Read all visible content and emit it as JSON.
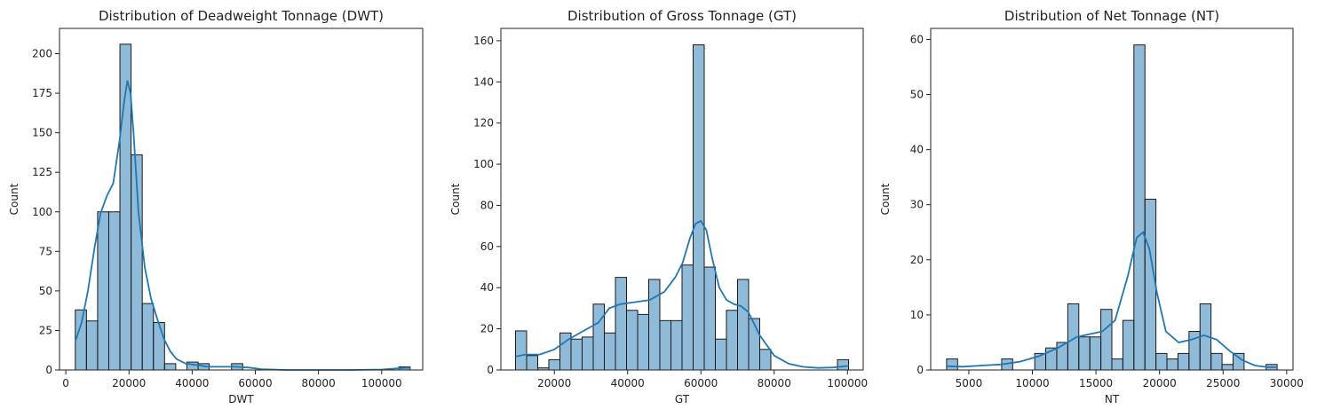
{
  "chart_data": [
    {
      "type": "histogram",
      "title": "Distribution of Deadweight Tonnage (DWT)",
      "xlabel": "DWT",
      "ylabel": "Count",
      "xlim": [
        -2000,
        113000
      ],
      "ylim": [
        0,
        216
      ],
      "xticks": [
        0,
        20000,
        40000,
        60000,
        80000,
        100000
      ],
      "yticks": [
        0,
        25,
        50,
        75,
        100,
        125,
        150,
        175,
        200
      ],
      "bin_range": [
        3000,
        109000
      ],
      "bins": 30,
      "counts": [
        38,
        31,
        100,
        100,
        206,
        136,
        42,
        30,
        4,
        0,
        5,
        4,
        0,
        0,
        4,
        0,
        0,
        0,
        0,
        0,
        0,
        0,
        0,
        0,
        0,
        0,
        0,
        0,
        0,
        2
      ],
      "kde": {
        "x": [
          3000,
          5000,
          7000,
          9000,
          11000,
          13000,
          15000,
          17000,
          18500,
          19500,
          20500,
          21500,
          23000,
          25000,
          27000,
          29000,
          31000,
          33000,
          35000,
          38000,
          42000,
          45000,
          50000,
          54000,
          58000,
          62000,
          70000,
          80000,
          90000,
          100000,
          105000,
          109000
        ],
        "y": [
          18,
          30,
          50,
          76,
          99,
          110,
          118,
          145,
          170,
          183,
          175,
          148,
          100,
          65,
          45,
          32,
          20,
          12,
          7,
          4,
          3,
          2,
          2,
          2,
          1.5,
          0.5,
          0,
          0,
          0,
          0.3,
          1,
          1.5
        ]
      },
      "grid": false
    },
    {
      "type": "histogram",
      "title": "Distribution of Gross Tonnage (GT)",
      "xlabel": "GT",
      "ylabel": "Count",
      "xlim": [
        5400,
        104300
      ],
      "ylim": [
        0,
        166
      ],
      "xticks": [
        20000,
        40000,
        60000,
        80000,
        100000
      ],
      "yticks": [
        0,
        20,
        40,
        60,
        80,
        100,
        120,
        140,
        160
      ],
      "bin_range": [
        9400,
        100300
      ],
      "bins": 30,
      "counts": [
        19,
        7,
        1,
        5,
        18,
        15,
        16,
        32,
        18,
        45,
        29,
        27,
        44,
        24,
        24,
        51,
        158,
        50,
        15,
        29,
        44,
        25,
        10,
        0,
        0,
        0,
        0,
        0,
        0,
        5
      ],
      "kde": {
        "x": [
          9400,
          12000,
          16000,
          20000,
          24000,
          28000,
          32000,
          35000,
          38000,
          42000,
          46000,
          50000,
          53000,
          55000,
          57000,
          58500,
          60000,
          61500,
          63000,
          65000,
          67000,
          69000,
          71000,
          73000,
          76000,
          80000,
          84000,
          88000,
          92000,
          96000,
          100300
        ],
        "y": [
          6.5,
          7.5,
          7.5,
          10,
          15,
          19,
          23,
          30,
          32,
          33,
          34,
          38,
          45,
          52,
          64,
          71,
          72.5,
          68,
          55,
          40,
          34,
          32,
          31,
          28,
          17,
          7,
          3,
          1.5,
          1,
          1.2,
          2
        ]
      },
      "grid": false
    },
    {
      "type": "histogram",
      "title": "Distribution of Net Tonnage (NT)",
      "xlabel": "NT",
      "ylabel": "Count",
      "xlim": [
        2000,
        30500
      ],
      "ylim": [
        0,
        62
      ],
      "xticks": [
        5000,
        10000,
        15000,
        20000,
        25000,
        30000
      ],
      "yticks": [
        0,
        10,
        20,
        30,
        40,
        50,
        60
      ],
      "bin_range": [
        3250,
        29250
      ],
      "bins": 30,
      "counts": [
        2,
        0,
        0,
        0,
        0,
        2,
        0,
        0,
        3,
        4,
        5,
        12,
        6,
        6,
        11,
        2,
        9,
        59,
        31,
        3,
        2,
        3,
        7,
        12,
        3,
        1,
        3,
        0,
        0,
        1
      ],
      "kde": {
        "x": [
          3250,
          4500,
          6000,
          7500,
          9000,
          10500,
          12000,
          13500,
          14500,
          15500,
          16500,
          17500,
          18200,
          18700,
          19200,
          19800,
          20500,
          21500,
          22500,
          23500,
          24500,
          25500,
          26500,
          27500,
          28500,
          29250
        ],
        "y": [
          0.7,
          0.6,
          0.8,
          1,
          1.5,
          2.5,
          4,
          6,
          6.5,
          7,
          9,
          17,
          24,
          25,
          22,
          14,
          7,
          5,
          5.5,
          6.3,
          5.5,
          3.5,
          1.8,
          0.8,
          0.5,
          0.5
        ]
      },
      "grid": false
    }
  ]
}
